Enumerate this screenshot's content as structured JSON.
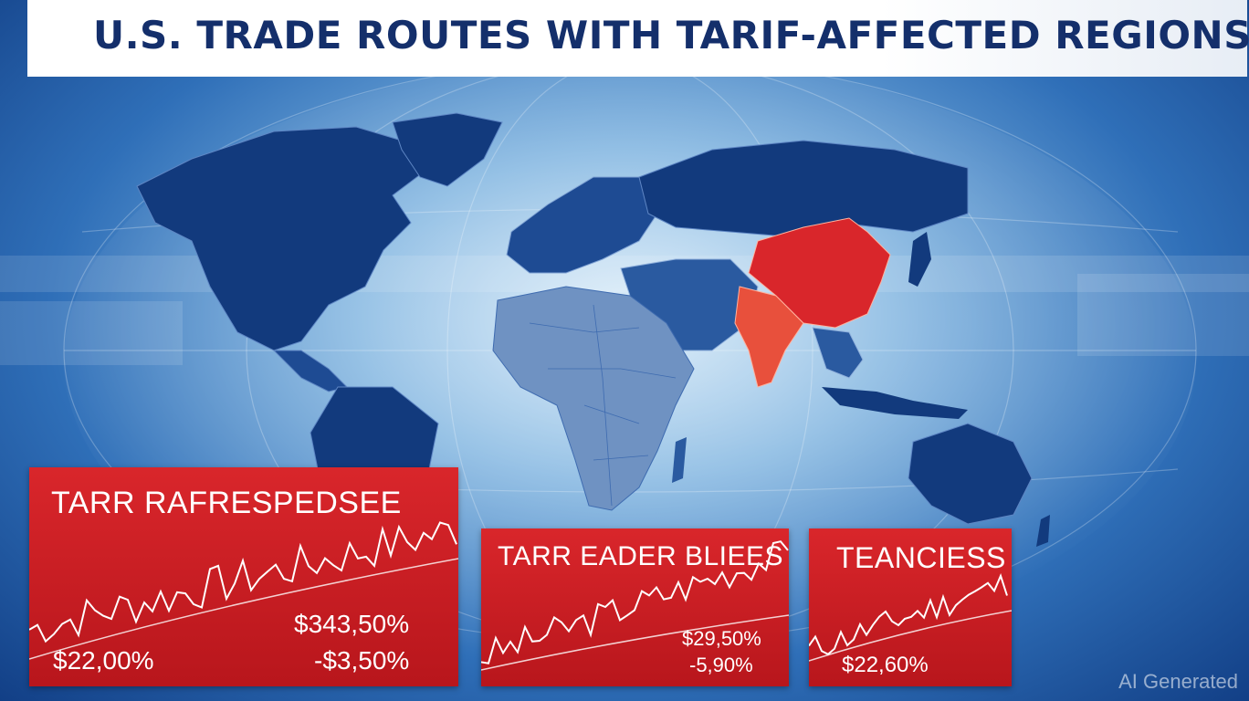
{
  "title": "U.S. TRADE ROUTES WITH TARIF-AFFECTED REGIONS",
  "colors": {
    "land_dark": "#123a7d",
    "land_mid": "#2a5aa0",
    "land_light": "#7f9fc8",
    "highlight_china": "#d9262b",
    "highlight_india": "#e8503c",
    "panel_red": "#c81e24"
  },
  "map": {
    "highlighted_regions": [
      "China",
      "India"
    ]
  },
  "panels": [
    {
      "title": "TARR RAFRESPEDSEE",
      "value_left": "$22,00%",
      "value_right_1": "$343,50%",
      "value_right_2": "-$3,50%"
    },
    {
      "title": "TARR EADER BLIEES",
      "value_right_1": "$29,50%",
      "value_right_2": "-5,90%"
    },
    {
      "title": "TEANCIESS",
      "value_left": "$22,60%"
    }
  ],
  "watermark": "AI Generated"
}
